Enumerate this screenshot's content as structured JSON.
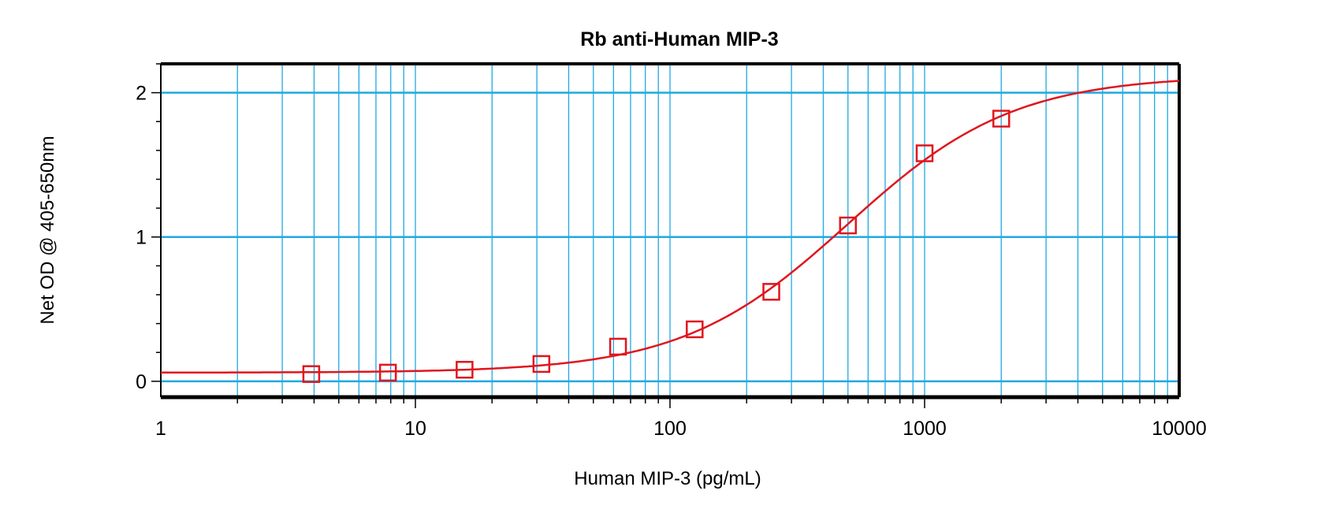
{
  "chart_data": {
    "type": "scatter",
    "title": "Rb anti-Human MIP-3",
    "xlabel": "Human MIP-3 (pg/mL)",
    "ylabel": "Net OD @ 405-650nm",
    "x_scale": "log",
    "xlim": [
      1,
      10000
    ],
    "ylim": [
      -0.11,
      2.2
    ],
    "x_ticks": [
      "1",
      "10",
      "100",
      "1000",
      "10000"
    ],
    "y_ticks": [
      "0",
      "1",
      "2"
    ],
    "grid": true,
    "series": [
      {
        "marker": "square",
        "x": [
          3.9,
          7.8,
          15.6,
          31.25,
          62.5,
          125,
          250,
          500,
          1000,
          2000
        ],
        "y": [
          0.05,
          0.06,
          0.08,
          0.12,
          0.24,
          0.36,
          0.62,
          1.08,
          1.58,
          1.82
        ]
      }
    ],
    "fit_curve": {
      "model": "4PL",
      "bottom": 0.06,
      "top": 2.12,
      "ec50": 500,
      "hill": 1.33
    },
    "colors": {
      "data": "#e0161e",
      "grid": "#1fa9e1",
      "axis": "#000000"
    }
  }
}
